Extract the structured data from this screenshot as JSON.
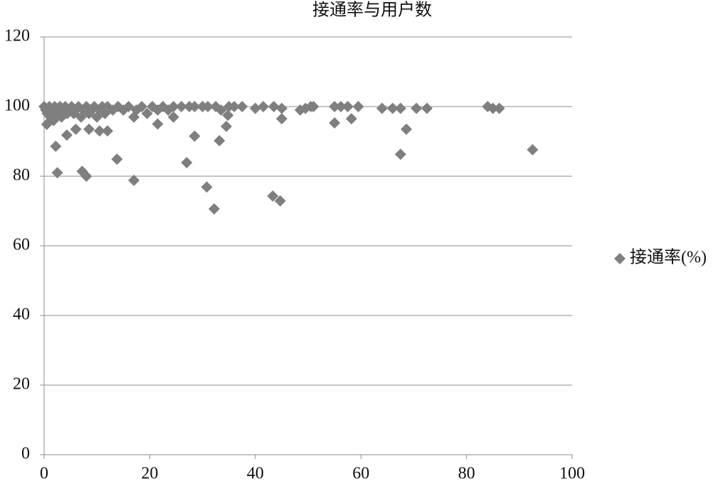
{
  "chart_data": {
    "type": "scatter",
    "title": "接通率与用户数",
    "series": [
      {
        "name": "接通率(%)",
        "color": "#7f7f7f",
        "x": [
          0,
          0.3,
          0.6,
          1,
          1.2,
          1.5,
          1.8,
          2,
          2.3,
          2.7,
          3,
          3.3,
          3.6,
          4,
          4.4,
          4.8,
          5.2,
          5.6,
          6,
          6.5,
          7,
          7.5,
          8,
          8.5,
          9,
          9.5,
          10,
          10.5,
          11,
          11.5,
          12,
          13,
          14,
          15,
          16,
          17.5,
          18.5,
          19.5,
          20.5,
          21.5,
          22.5,
          23.5,
          24.5,
          26,
          27.5,
          28.5,
          30,
          31,
          32.5,
          33.5,
          35,
          36,
          37.5,
          40,
          41.5,
          43.5,
          45,
          48.5,
          49.5,
          50.5,
          51,
          55,
          56.2,
          57.5,
          59.5,
          64,
          66,
          67.5,
          70.5,
          72.5,
          84,
          85,
          86.2,
          0.5,
          2.2,
          2.5,
          4.3,
          6,
          7.2,
          8,
          8.5,
          10.5,
          12,
          13.8,
          17,
          17,
          21.5,
          24.5,
          27,
          28.5,
          30.8,
          32.2,
          33.2,
          34.5,
          34.8,
          43.3,
          44.7,
          45,
          55,
          58.2,
          67.5,
          68.6,
          92.5
        ],
        "values": [
          100,
          99,
          98,
          100,
          97,
          99,
          96,
          100,
          98,
          99,
          100,
          97,
          99,
          100,
          98,
          99,
          100,
          98,
          99,
          100,
          97,
          99,
          100,
          98,
          99,
          100,
          97,
          99,
          100,
          98,
          100,
          99,
          100,
          99,
          100,
          99,
          100,
          98,
          100,
          99,
          100,
          99,
          100,
          100,
          100,
          100,
          100,
          100,
          100,
          99,
          100,
          100,
          100,
          99.5,
          100,
          100,
          99.5,
          99,
          99.5,
          100,
          100,
          100,
          100,
          100,
          100,
          99.5,
          99.5,
          99.5,
          99.5,
          99.5,
          100,
          99.5,
          99.5,
          94.9,
          88.6,
          81,
          91.8,
          93.5,
          81.4,
          80,
          93.5,
          93,
          93,
          84.9,
          78.8,
          97,
          95,
          97,
          83.9,
          91.5,
          76.9,
          70.6,
          90.2,
          94.3,
          97.5,
          74.3,
          72.9,
          96.5,
          95.3,
          96.5,
          86.3,
          93.5,
          87.6
        ]
      }
    ],
    "xlim": [
      0,
      100
    ],
    "xticks": [
      0,
      20,
      40,
      60,
      80,
      100
    ],
    "ylim": [
      0,
      120
    ],
    "yticks": [
      0,
      20,
      40,
      60,
      80,
      100,
      120
    ],
    "grid": true,
    "legend": "right"
  }
}
